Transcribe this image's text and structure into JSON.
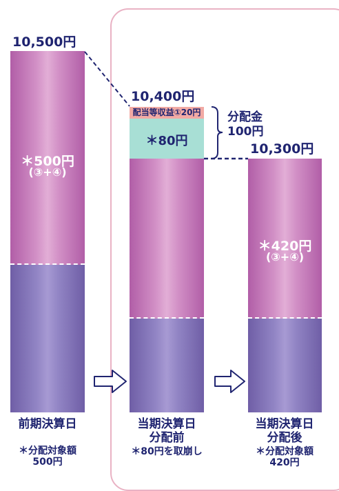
{
  "colors": {
    "navy": "#1f2470",
    "pink_bar": "#d290c6",
    "purple_bar": "#9184c4",
    "teal_box": "#a8dfd5",
    "salmon_box": "#f2aaa4",
    "frame": "#e9b2c4"
  },
  "col1": {
    "top_value": "10,500円",
    "pink_label_1": "＊500円",
    "pink_label_2": "(③+④)",
    "date": "前期決算日",
    "note_1": "＊分配対象額",
    "note_2": "500円"
  },
  "col2": {
    "top_value": "10,400円",
    "salmon_label": "配当等収益①20円",
    "teal_label": "＊80円",
    "brace_label_1": "分配金",
    "brace_label_2": "100円",
    "date_1": "当期決算日",
    "date_2": "分配前",
    "note": "＊80円を取崩し"
  },
  "col3": {
    "top_value": "10,300円",
    "pink_label_1": "＊420円",
    "pink_label_2": "(③+④)",
    "date_1": "当期決算日",
    "date_2": "分配後",
    "note_1": "＊分配対象額",
    "note_2": "420円"
  }
}
